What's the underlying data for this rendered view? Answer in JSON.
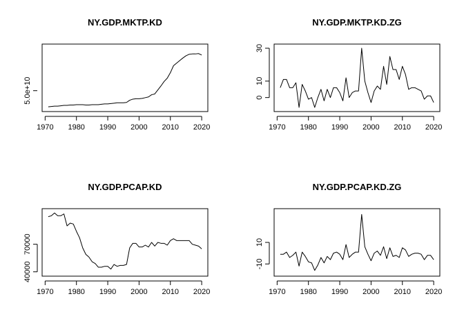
{
  "chart_data": [
    {
      "type": "line",
      "title": "NY.GDP.MKTP.KD",
      "xlabel": "",
      "ylabel": "",
      "xlim": [
        1971,
        2020
      ],
      "ylim": [
        0,
        170000000000
      ],
      "xticks": [
        1970,
        1980,
        1990,
        2000,
        2010,
        2020
      ],
      "xtick_labels": [
        "1970",
        "1980",
        "1990",
        "2000",
        "2010",
        "2020"
      ],
      "yticks": [
        50000000000
      ],
      "ytick_labels": [
        "5.0e+10"
      ],
      "grid": false,
      "x": [
        1971,
        1972,
        1973,
        1974,
        1975,
        1976,
        1977,
        1978,
        1979,
        1980,
        1981,
        1982,
        1983,
        1984,
        1985,
        1986,
        1987,
        1988,
        1989,
        1990,
        1991,
        1992,
        1993,
        1994,
        1995,
        1996,
        1997,
        1998,
        1999,
        2000,
        2001,
        2002,
        2003,
        2004,
        2005,
        2006,
        2007,
        2008,
        2009,
        2010,
        2011,
        2012,
        2013,
        2014,
        2015,
        2016,
        2017,
        2018,
        2019,
        2020
      ],
      "y": [
        6000000000,
        7000000000,
        8000000000,
        8000000000,
        9000000000,
        10000000000,
        10000000000,
        11000000000,
        11000000000,
        12000000000,
        12000000000,
        12000000000,
        11000000000,
        11000000000,
        12000000000,
        12000000000,
        12000000000,
        13000000000,
        14000000000,
        14000000000,
        15000000000,
        16000000000,
        17000000000,
        17000000000,
        17000000000,
        18000000000,
        24000000000,
        27000000000,
        28000000000,
        28000000000,
        29000000000,
        31000000000,
        33000000000,
        39000000000,
        41000000000,
        52000000000,
        63000000000,
        75000000000,
        84000000000,
        99000000000,
        118000000000,
        125000000000,
        132000000000,
        139000000000,
        145000000000,
        149000000000,
        150000000000,
        150000000000,
        151000000000,
        147000000000
      ]
    },
    {
      "type": "line",
      "title": "NY.GDP.MKTP.KD.ZG",
      "xlabel": "",
      "ylabel": "",
      "xlim": [
        1971,
        2020
      ],
      "ylim": [
        -7,
        31
      ],
      "xticks": [
        1970,
        1980,
        1990,
        2000,
        2010,
        2020
      ],
      "xtick_labels": [
        "1970",
        "1980",
        "1990",
        "2000",
        "2010",
        "2020"
      ],
      "yticks": [
        0,
        10,
        30
      ],
      "ytick_labels": [
        "0",
        "10",
        "30"
      ],
      "grid": false,
      "x": [
        1971,
        1972,
        1973,
        1974,
        1975,
        1976,
        1977,
        1978,
        1979,
        1980,
        1981,
        1982,
        1983,
        1984,
        1985,
        1986,
        1987,
        1988,
        1989,
        1990,
        1991,
        1992,
        1993,
        1994,
        1995,
        1996,
        1997,
        1998,
        1999,
        2000,
        2001,
        2002,
        2003,
        2004,
        2005,
        2006,
        2007,
        2008,
        2009,
        2010,
        2011,
        2012,
        2013,
        2014,
        2015,
        2016,
        2017,
        2018,
        2019,
        2020
      ],
      "y": [
        6,
        11,
        11,
        6,
        6,
        9,
        -6,
        8,
        4,
        -1,
        0,
        -6,
        0,
        5,
        -2,
        5,
        0,
        6,
        6,
        3,
        -2,
        12,
        0,
        3,
        4,
        4,
        30,
        10,
        3,
        -3,
        4,
        7,
        5,
        19,
        8,
        25,
        17,
        17,
        11,
        19,
        14,
        5,
        6,
        6,
        5,
        4,
        -1,
        1,
        1,
        -3
      ]
    },
    {
      "type": "line",
      "title": "NY.GDP.PCAP.KD",
      "xlabel": "",
      "ylabel": "",
      "xlim": [
        1971,
        2020
      ],
      "ylim": [
        38000,
        106000
      ],
      "xticks": [
        1970,
        1980,
        1990,
        2000,
        2010,
        2020
      ],
      "xtick_labels": [
        "1970",
        "1980",
        "1990",
        "2000",
        "2010",
        "2020"
      ],
      "yticks": [
        40000,
        70000
      ],
      "ytick_labels": [
        "40000",
        "70000"
      ],
      "grid": false,
      "x": [
        1971,
        1972,
        1973,
        1974,
        1975,
        1976,
        1977,
        1978,
        1979,
        1980,
        1981,
        1982,
        1983,
        1984,
        1985,
        1986,
        1987,
        1988,
        1989,
        1990,
        1991,
        1992,
        1993,
        1994,
        1995,
        1996,
        1997,
        1998,
        1999,
        2000,
        2001,
        2002,
        2003,
        2004,
        2005,
        2006,
        2007,
        2008,
        2009,
        2010,
        2011,
        2012,
        2013,
        2014,
        2015,
        2016,
        2017,
        2018,
        2019,
        2020
      ],
      "y": [
        100000,
        101000,
        104000,
        101000,
        101000,
        103000,
        90000,
        93000,
        92000,
        84000,
        77000,
        66000,
        59000,
        56000,
        51000,
        49000,
        45000,
        45000,
        46000,
        46000,
        43000,
        48000,
        46000,
        47000,
        47000,
        48000,
        66000,
        71000,
        71000,
        67000,
        67000,
        69000,
        67000,
        72000,
        68000,
        72000,
        71000,
        71000,
        69000,
        74000,
        76000,
        74000,
        74000,
        74000,
        74000,
        74000,
        70000,
        69000,
        68000,
        65000
      ]
    },
    {
      "type": "line",
      "title": "NY.GDP.PCAP.KD.ZG",
      "xlabel": "",
      "ylabel": "",
      "xlim": [
        1971,
        2020
      ],
      "ylim": [
        -19,
        39
      ],
      "xticks": [
        1970,
        1980,
        1990,
        2000,
        2010,
        2020
      ],
      "xtick_labels": [
        "1970",
        "1980",
        "1990",
        "2000",
        "2010",
        "2020"
      ],
      "yticks": [
        -10,
        10
      ],
      "ytick_labels": [
        "-10",
        "10"
      ],
      "grid": false,
      "x": [
        1971,
        1972,
        1973,
        1974,
        1975,
        1976,
        1977,
        1978,
        1979,
        1980,
        1981,
        1982,
        1983,
        1984,
        1985,
        1986,
        1987,
        1988,
        1989,
        1990,
        1991,
        1992,
        1993,
        1994,
        1995,
        1996,
        1997,
        1998,
        1999,
        2000,
        2001,
        2002,
        2003,
        2004,
        2005,
        2006,
        2007,
        2008,
        2009,
        2010,
        2011,
        2012,
        2013,
        2014,
        2015,
        2016,
        2017,
        2018,
        2019,
        2020
      ],
      "y": [
        -1,
        -1,
        1,
        -4,
        -2,
        1,
        -12,
        1,
        -3,
        -8,
        -9,
        -16,
        -11,
        -4,
        -9,
        -3,
        -6,
        0,
        1,
        -1,
        -6,
        8,
        -4,
        -1,
        1,
        1,
        36,
        6,
        -1,
        -7,
        0,
        2,
        -2,
        6,
        -5,
        5,
        -3,
        -2,
        -4,
        5,
        3,
        -3,
        -1,
        0,
        0,
        -1,
        -6,
        -2,
        -2,
        -6
      ]
    }
  ]
}
